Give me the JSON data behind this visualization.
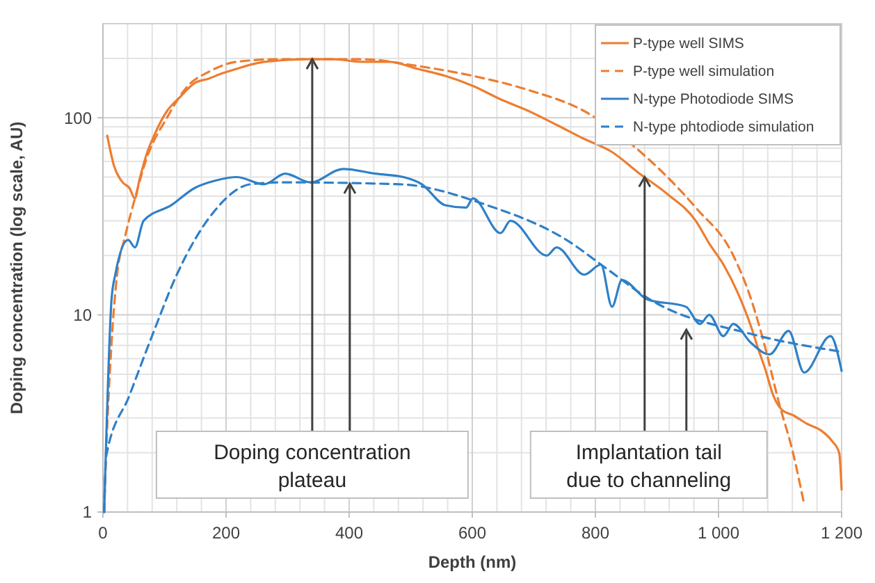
{
  "chart_data": {
    "type": "line",
    "xlabel": "Depth (nm)",
    "ylabel": "Doping concentration (log scale, AU)",
    "log": "y",
    "grid": true,
    "legend": "top right",
    "xlim": [
      0,
      1200
    ],
    "xticks": [
      0,
      200,
      400,
      600,
      800,
      {
        "value": 1000,
        "label": "1 000"
      },
      {
        "value": 1200,
        "label": "1 200"
      }
    ],
    "ylim": [
      1,
      300
    ],
    "yticks": [
      1,
      10,
      100
    ],
    "series": [
      {
        "name": "P-type well SIMS",
        "color": "#ed7d31",
        "line_style": "solid",
        "x": [
          7,
          18,
          32,
          43,
          52,
          59,
          70,
          86,
          104,
          126,
          149,
          172,
          194,
          217,
          240,
          262,
          285,
          330,
          375,
          420,
          465,
          511,
          556,
          601,
          646,
          692,
          737,
          782,
          827,
          872,
          917,
          963,
          985,
          1008,
          1031,
          1053,
          1064,
          1076,
          1089,
          1103,
          1121,
          1144,
          1166,
          1184,
          1196,
          1200
        ],
        "values": [
          81,
          57,
          47,
          44,
          39,
          48,
          64,
          85,
          108,
          128,
          150,
          158,
          168,
          177,
          186,
          192,
          195,
          198,
          198,
          192,
          192,
          177,
          163,
          145,
          124,
          108,
          92,
          78,
          67,
          52,
          41,
          30,
          23,
          18,
          13,
          8.7,
          6.8,
          5.3,
          3.9,
          3.3,
          3.1,
          2.8,
          2.6,
          2.3,
          2.0,
          1.3
        ]
      },
      {
        "name": "P-type well simulation",
        "color": "#ed7d31",
        "line_style": "dashed",
        "x": [
          2,
          5,
          14,
          23,
          36,
          52,
          70,
          104,
          138,
          172,
          217,
          285,
          420,
          511,
          601,
          692,
          782,
          888,
          963,
          1024,
          1053,
          1076,
          1098,
          1121,
          1139
        ],
        "values": [
          1.0,
          1.9,
          7.2,
          16,
          25,
          39,
          61,
          100,
          145,
          171,
          192,
          198,
          198,
          183,
          163,
          138,
          108,
          61,
          35,
          20,
          12,
          6.8,
          3.6,
          2.0,
          1.1
        ]
      },
      {
        "name": "N-type Photodiode SIMS",
        "color": "#2e80c8",
        "line_style": "solid",
        "x": [
          2,
          14,
          20,
          41,
          52,
          66,
          111,
          149,
          183,
          217,
          262,
          296,
          337,
          391,
          443,
          488,
          518,
          556,
          590,
          601,
          646,
          662,
          721,
          737,
          782,
          809,
          827,
          843,
          884,
          947,
          970,
          985,
          1008,
          1024,
          1053,
          1083,
          1114,
          1139,
          1182,
          1200
        ],
        "values": [
          1.0,
          12,
          16,
          24,
          22,
          30,
          36,
          44,
          48,
          50,
          46,
          52,
          47,
          55,
          52,
          50,
          46,
          36,
          35,
          39,
          26,
          30,
          20,
          22,
          16,
          18,
          11,
          15,
          12,
          11,
          9.0,
          10,
          7.8,
          9.0,
          7.2,
          6.3,
          8.3,
          5.1,
          7.8,
          5.2
        ]
      },
      {
        "name": "N-type phtodiode simulation",
        "color": "#2e80c8",
        "line_style": "dashed",
        "x": [
          2,
          5,
          43,
          81,
          120,
          179,
          240,
          292,
          481,
          624,
          753,
          820,
          888,
          1053,
          1200
        ],
        "values": [
          1.0,
          1.9,
          3.9,
          8.0,
          16,
          33,
          46,
          47,
          46,
          36,
          24,
          17,
          12,
          8.0,
          6.5
        ]
      }
    ],
    "annotations": [
      {
        "text": "Doping concentration plateau",
        "x": 340,
        "y": 198
      },
      {
        "text": "Implantation tail due to channeling",
        "x": 880,
        "y": 50
      }
    ]
  }
}
